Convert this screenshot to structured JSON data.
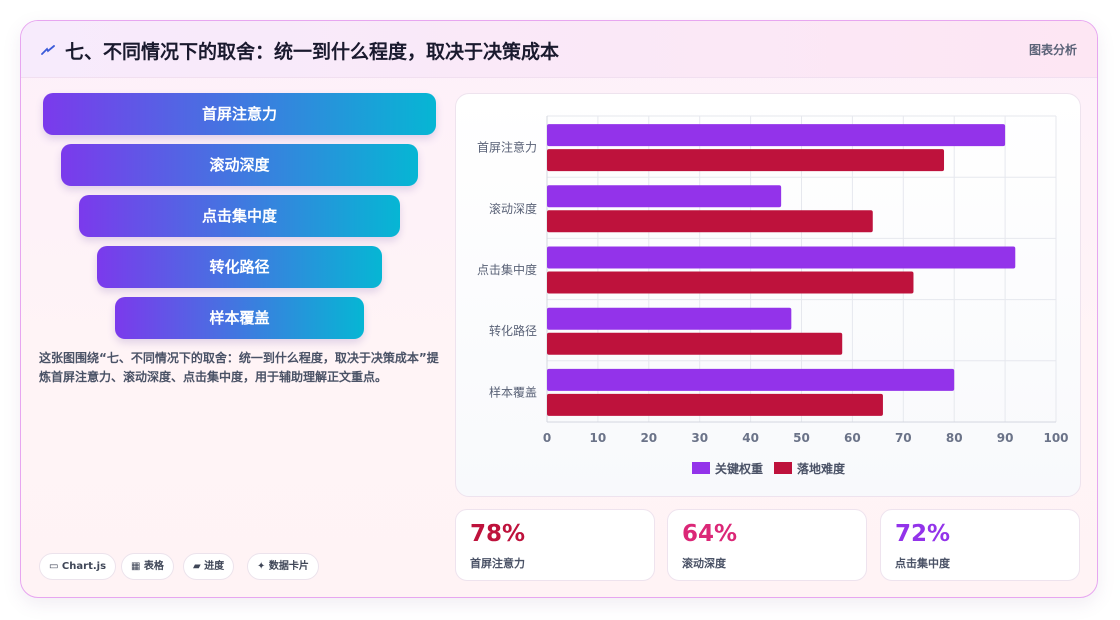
{
  "header": {
    "title": "七、不同情况下的取舍：统一到什么程度，取决于决策成本",
    "tag": "图表分析",
    "icon": "lightning-icon"
  },
  "funnel": [
    "首屏注意力",
    "滚动深度",
    "点击集中度",
    "转化路径",
    "样本覆盖"
  ],
  "description": "这张图围绕“七、不同情况下的取舍：统一到什么程度，取决于决策成本”提炼首屏注意力、滚动深度、点击集中度，用于辅助理解正文重点。",
  "chips": [
    "▭ Chart.js",
    "▦ 表格",
    "▰ 进度",
    "✦ 数据卡片"
  ],
  "chart_data": {
    "type": "bar",
    "orientation": "horizontal",
    "categories": [
      "首屏注意力",
      "滚动深度",
      "点击集中度",
      "转化路径",
      "样本覆盖"
    ],
    "series": [
      {
        "name": "关键权重",
        "values": [
          90,
          46,
          92,
          48,
          80
        ],
        "color": "#9333ea"
      },
      {
        "name": "落地难度",
        "values": [
          78,
          64,
          72,
          58,
          66
        ],
        "color": "#be123c"
      }
    ],
    "xlim": [
      0,
      100
    ],
    "xticks": [
      0,
      10,
      20,
      30,
      40,
      50,
      60,
      70,
      80,
      90,
      100
    ],
    "grid": true,
    "legend": "bottom"
  },
  "stats": [
    {
      "value": "78%",
      "label": "首屏注意力",
      "color": "#be123c"
    },
    {
      "value": "64%",
      "label": "滚动深度",
      "color": "#db2777"
    },
    {
      "value": "72%",
      "label": "点击集中度",
      "color": "#9333ea"
    }
  ]
}
